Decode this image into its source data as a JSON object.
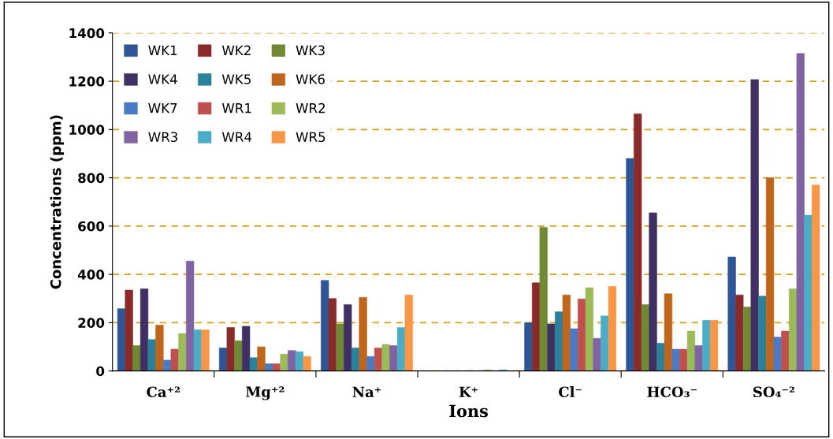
{
  "chart_data": {
    "type": "bar",
    "xlabel": "Ions",
    "ylabel": "Concentrations (ppm)",
    "categories": [
      "Ca⁺²",
      "Mg⁺²",
      "Na⁺",
      "K⁺",
      "Cl⁻",
      "HCO₃⁻",
      "SO₄⁻²"
    ],
    "series": [
      {
        "name": "WK1",
        "color": "#2e5596",
        "values": [
          258,
          95,
          375,
          0,
          200,
          880,
          472
        ]
      },
      {
        "name": "WK2",
        "color": "#8b2a2a",
        "values": [
          335,
          180,
          300,
          0,
          365,
          1065,
          315
        ]
      },
      {
        "name": "WK3",
        "color": "#6f8a32",
        "values": [
          105,
          125,
          195,
          0,
          595,
          275,
          265
        ]
      },
      {
        "name": "WK4",
        "color": "#3f2f63",
        "values": [
          340,
          185,
          275,
          0,
          195,
          655,
          1207
        ]
      },
      {
        "name": "WK5",
        "color": "#2a8199",
        "values": [
          130,
          55,
          95,
          0,
          245,
          115,
          310
        ]
      },
      {
        "name": "WK6",
        "color": "#c0651c",
        "values": [
          190,
          100,
          305,
          0,
          315,
          320,
          800
        ]
      },
      {
        "name": "WK7",
        "color": "#4a7bc4",
        "values": [
          45,
          30,
          60,
          0,
          175,
          90,
          140
        ]
      },
      {
        "name": "WR1",
        "color": "#c0504d",
        "values": [
          90,
          30,
          95,
          0,
          298,
          90,
          165
        ]
      },
      {
        "name": "WR2",
        "color": "#9bbb59",
        "values": [
          155,
          70,
          110,
          5,
          345,
          165,
          340
        ]
      },
      {
        "name": "WR3",
        "color": "#8064a2",
        "values": [
          455,
          85,
          105,
          0,
          135,
          105,
          1315
        ]
      },
      {
        "name": "WR4",
        "color": "#4bacc6",
        "values": [
          170,
          80,
          180,
          5,
          228,
          210,
          645
        ]
      },
      {
        "name": "WR5",
        "color": "#f79646",
        "values": [
          170,
          60,
          315,
          0,
          350,
          210,
          770
        ]
      }
    ],
    "ylim": [
      0,
      1400
    ],
    "yticks": [
      0,
      200,
      400,
      600,
      800,
      1000,
      1200,
      1400
    ],
    "grid": "y",
    "legend": "top left"
  }
}
